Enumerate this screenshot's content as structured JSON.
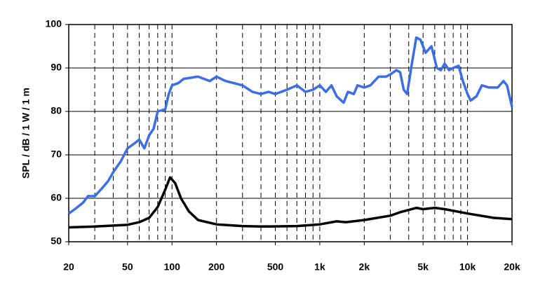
{
  "chart_data": {
    "type": "line",
    "y_label": "SPL / dB / 1 W / 1 m",
    "log_x": true,
    "grid": true,
    "xlim": [
      20,
      20000
    ],
    "ylim": [
      50,
      100
    ],
    "yticks": [
      50,
      60,
      70,
      80,
      90,
      100
    ],
    "xticks": [
      20,
      50,
      100,
      200,
      500,
      {
        "value": 1000,
        "label": "1k"
      },
      {
        "value": 2000,
        "label": "2k"
      },
      {
        "value": 5000,
        "label": "5k"
      },
      {
        "value": 10000,
        "label": "10k"
      },
      {
        "value": 20000,
        "label": "20k"
      }
    ],
    "xgrid": [
      20,
      30,
      40,
      50,
      60,
      70,
      80,
      90,
      100,
      200,
      300,
      400,
      500,
      600,
      700,
      800,
      900,
      1000,
      2000,
      3000,
      4000,
      5000,
      6000,
      7000,
      8000,
      9000,
      10000,
      20000
    ],
    "series": [
      {
        "color": "#3a6ee8",
        "x": [
          20,
          22,
          25,
          27,
          30,
          33,
          37,
          40,
          45,
          50,
          55,
          60,
          65,
          70,
          75,
          80,
          90,
          95,
          100,
          110,
          120,
          150,
          180,
          200,
          230,
          300,
          350,
          400,
          450,
          500,
          600,
          700,
          800,
          900,
          1000,
          1100,
          1200,
          1300,
          1450,
          1550,
          1700,
          1800,
          2000,
          2200,
          2500,
          2800,
          3000,
          3300,
          3500,
          3700,
          3900,
          4200,
          4500,
          4800,
          5200,
          5700,
          6200,
          6600,
          7000,
          7500,
          8000,
          8700,
          9300,
          10000,
          10500,
          11500,
          12500,
          14000,
          16000,
          17500,
          18500,
          20000
        ],
        "values": [
          56.5,
          57.5,
          59,
          60.5,
          60.5,
          62,
          64,
          66,
          68.5,
          71.5,
          72.5,
          73.5,
          71.5,
          74.5,
          76,
          80,
          80.5,
          84,
          86,
          86.5,
          87.5,
          88,
          87,
          88,
          87,
          86,
          84.5,
          84,
          84.5,
          84,
          85,
          86,
          84.5,
          85,
          86,
          84.5,
          86,
          83.5,
          82,
          84.5,
          84,
          86,
          85.5,
          86,
          88,
          88,
          88.5,
          89.5,
          89,
          85,
          84,
          91,
          97,
          96.5,
          93.5,
          95,
          90,
          89.5,
          91,
          89.5,
          90,
          90.5,
          87,
          84,
          82.5,
          83.5,
          86,
          85.5,
          85.5,
          87,
          86,
          81
        ]
      },
      {
        "color": "#000000",
        "x": [
          20,
          30,
          50,
          60,
          70,
          80,
          90,
          97,
          105,
          115,
          130,
          150,
          200,
          300,
          400,
          700,
          1000,
          1300,
          1500,
          2000,
          3000,
          3500,
          4500,
          5000,
          6000,
          7000,
          10000,
          15000,
          20000
        ],
        "values": [
          53.3,
          53.5,
          53.9,
          54.5,
          55.5,
          58,
          62,
          64.8,
          63.5,
          60,
          57,
          55,
          54,
          53.6,
          53.5,
          53.6,
          54,
          54.7,
          54.5,
          55,
          56,
          56.8,
          57.8,
          57.5,
          57.8,
          57.5,
          56.5,
          55.5,
          55.2
        ]
      }
    ]
  }
}
